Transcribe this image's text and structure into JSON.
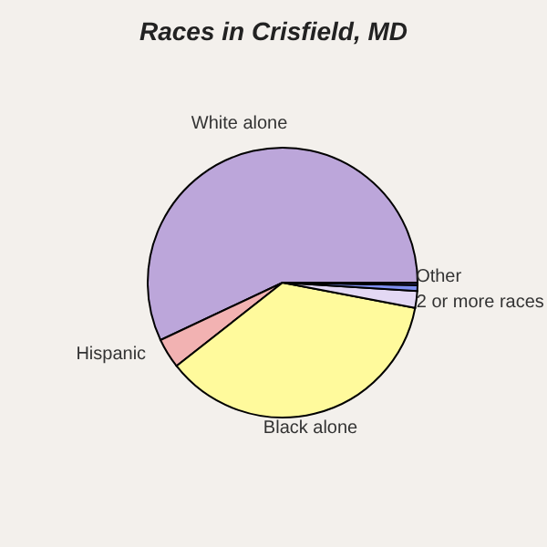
{
  "chart_data": {
    "type": "pie",
    "title": "Races in Crisfield, MD",
    "categories": [
      "White alone",
      "Hispanic",
      "Black alone",
      "2 or more races",
      null,
      "Other"
    ],
    "values": [
      57,
      3.6,
      36.4,
      2,
      0.7,
      0.3
    ],
    "colors": [
      "#bca6da",
      "#f2b2b2",
      "#fffa9c",
      "#e3d8f4",
      "#7f8ff0",
      "#3a3a8a"
    ]
  }
}
